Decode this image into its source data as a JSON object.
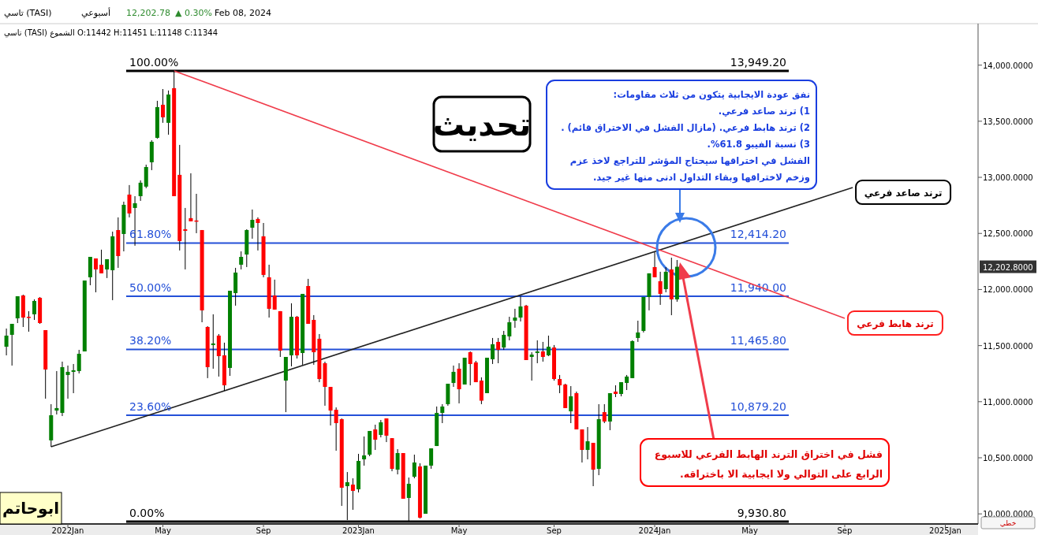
{
  "chart_data": {
    "type": "candlestick",
    "title": "تاسي (TASI)",
    "subtitle": "تاسي (TASI)  الشموع  O:11442 H:11451 L:11148 C:11344",
    "x": [
      "2021-10-17",
      "2021-10-24",
      "2021-10-31",
      "2021-11-07",
      "2021-11-14",
      "2021-11-21",
      "2021-11-28",
      "2021-12-05",
      "2021-12-12",
      "2021-12-19",
      "2021-12-26",
      "2022-01-02",
      "2022-01-09",
      "2022-01-16",
      "2022-01-23",
      "2022-01-30",
      "2022-02-06",
      "2022-02-13",
      "2022-02-20",
      "2022-02-27",
      "2022-03-06",
      "2022-03-13",
      "2022-03-20",
      "2022-03-27",
      "2022-04-03",
      "2022-04-10",
      "2022-04-17",
      "2022-04-24",
      "2022-05-01",
      "2022-05-08",
      "2022-05-15",
      "2022-05-22",
      "2022-05-29",
      "2022-06-05",
      "2022-06-12",
      "2022-06-19",
      "2022-06-26",
      "2022-07-03",
      "2022-07-10",
      "2022-07-17",
      "2022-07-24",
      "2022-07-31",
      "2022-08-07",
      "2022-08-14",
      "2022-08-21",
      "2022-08-28",
      "2022-09-04",
      "2022-09-11",
      "2022-09-18",
      "2022-09-25",
      "2022-10-02",
      "2022-10-09",
      "2022-10-16",
      "2022-10-23",
      "2022-10-30",
      "2022-11-06",
      "2022-11-13",
      "2022-11-20",
      "2022-11-27",
      "2022-12-04",
      "2022-12-11",
      "2022-12-18",
      "2022-12-25",
      "2023-01-01",
      "2023-01-08",
      "2023-01-15",
      "2023-01-22",
      "2023-01-29",
      "2023-02-05",
      "2023-02-12",
      "2023-02-19",
      "2023-02-26",
      "2023-03-05",
      "2023-03-12",
      "2023-03-19",
      "2023-03-26",
      "2023-04-02",
      "2023-04-09",
      "2023-04-16",
      "2023-04-23",
      "2023-04-30",
      "2023-05-07",
      "2023-05-14",
      "2023-05-21",
      "2023-05-28",
      "2023-06-04",
      "2023-06-11",
      "2023-06-18",
      "2023-06-25",
      "2023-07-02",
      "2023-07-09",
      "2023-07-16",
      "2023-07-23",
      "2023-07-30",
      "2023-08-06",
      "2023-08-13",
      "2023-08-20",
      "2023-08-27",
      "2023-09-03",
      "2023-09-10",
      "2023-09-17",
      "2023-09-24",
      "2023-10-01",
      "2023-10-08",
      "2023-10-15",
      "2023-10-22",
      "2023-10-29",
      "2023-11-05",
      "2023-11-12",
      "2023-11-19",
      "2023-11-26",
      "2023-12-03",
      "2023-12-10",
      "2023-12-17",
      "2023-12-24",
      "2023-12-31",
      "2024-01-07",
      "2024-01-14",
      "2024-01-21",
      "2024-01-28",
      "2024-02-04"
    ],
    "ohlc": [
      [
        11490,
        11652,
        11413,
        11589
      ],
      [
        11596,
        11694,
        11322,
        11694
      ],
      [
        11743,
        11940,
        11701,
        11940
      ],
      [
        11947,
        11954,
        11666,
        11750
      ],
      [
        11757,
        11807,
        11624,
        11750
      ],
      [
        11779,
        11912,
        11729,
        11898
      ],
      [
        11926,
        11933,
        11694,
        11701
      ],
      [
        11638,
        11638,
        11027,
        11287
      ],
      [
        10655,
        10978,
        10598,
        10879
      ],
      [
        10921,
        11273,
        10886,
        10943
      ],
      [
        10900,
        11357,
        10872,
        11308
      ],
      [
        11238,
        11322,
        11027,
        11266
      ],
      [
        11266,
        11336,
        11076,
        11280
      ],
      [
        11273,
        11462,
        11252,
        11427
      ],
      [
        11448,
        12080,
        11448,
        12080
      ],
      [
        12109,
        12291,
        12038,
        12291
      ],
      [
        12277,
        12277,
        11975,
        12179
      ],
      [
        12221,
        12355,
        12144,
        12144
      ],
      [
        12179,
        12270,
        12102,
        12270
      ],
      [
        12172,
        12516,
        11905,
        12474
      ],
      [
        12530,
        12643,
        12193,
        12298
      ],
      [
        12495,
        12783,
        12340,
        12755
      ],
      [
        12846,
        12931,
        12643,
        12678
      ],
      [
        12727,
        12832,
        12390,
        12769
      ],
      [
        12832,
        12973,
        12790,
        12952
      ],
      [
        12917,
        13113,
        12903,
        13092
      ],
      [
        13134,
        13331,
        13064,
        13317
      ],
      [
        13352,
        13682,
        13345,
        13626
      ],
      [
        13647,
        13787,
        13486,
        13535
      ],
      [
        13486,
        13774,
        13380,
        13738
      ],
      [
        13795,
        13949.2,
        12832,
        12832
      ],
      [
        13022,
        13289,
        12348,
        12432
      ],
      [
        12537,
        12727,
        12179,
        12523
      ],
      [
        12636,
        13036,
        12608,
        12608
      ],
      [
        12615,
        12853,
        12502,
        12608
      ],
      [
        12530,
        12530,
        11708,
        11814
      ],
      [
        11666,
        11673,
        11210,
        11308
      ],
      [
        11505,
        11779,
        11294,
        11519
      ],
      [
        11589,
        11603,
        11224,
        11406
      ],
      [
        11413,
        11526,
        11097,
        11146
      ],
      [
        11301,
        11989,
        11230,
        11989
      ],
      [
        11968,
        12193,
        11856,
        12151
      ],
      [
        12221,
        12340,
        12179,
        12291
      ],
      [
        12312,
        12537,
        12200,
        12530
      ],
      [
        12551,
        12713,
        12453,
        12621
      ],
      [
        12629,
        12643,
        12348,
        12593
      ],
      [
        12474,
        12593,
        12109,
        12130
      ],
      [
        12109,
        12221,
        11750,
        11828
      ],
      [
        11947,
        12088,
        11821,
        11821
      ],
      [
        11807,
        11807,
        11399,
        11455
      ],
      [
        11188,
        11399,
        10907,
        11399
      ],
      [
        11413,
        11877,
        11315,
        11757
      ],
      [
        11757,
        11764,
        11385,
        11413
      ],
      [
        11434,
        11961,
        11329,
        11961
      ],
      [
        12031,
        12095,
        11694,
        11694
      ],
      [
        11729,
        11772,
        11329,
        11441
      ],
      [
        11561,
        11603,
        11174,
        11202
      ],
      [
        11343,
        11357,
        10964,
        11132
      ],
      [
        11132,
        11132,
        10788,
        10921
      ],
      [
        10928,
        10949,
        10563,
        10809
      ],
      [
        10844,
        10851,
        10071,
        10233
      ],
      [
        10247,
        10373,
        9945,
        10282
      ],
      [
        10261,
        10317,
        10036,
        10205
      ],
      [
        10219,
        10535,
        10191,
        10472
      ],
      [
        10486,
        10690,
        10430,
        10521
      ],
      [
        10528,
        10739,
        10514,
        10739
      ],
      [
        10753,
        10795,
        10570,
        10661
      ],
      [
        10704,
        10837,
        10682,
        10816
      ],
      [
        10851,
        10851,
        10640,
        10697
      ],
      [
        10675,
        10675,
        10380,
        10401
      ],
      [
        10394,
        10577,
        10352,
        10542
      ],
      [
        10542,
        10542,
        10135,
        10135
      ],
      [
        10142,
        10324,
        9930.8,
        10268
      ],
      [
        10331,
        10528,
        10317,
        10458
      ],
      [
        10423,
        10451,
        9959,
        9966
      ],
      [
        10001,
        10430,
        10001,
        10430
      ],
      [
        10430,
        10584,
        10402,
        10584
      ],
      [
        10605,
        10957,
        10605,
        10900
      ],
      [
        10900,
        10978,
        10809,
        10957
      ],
      [
        10978,
        11160,
        10964,
        11160
      ],
      [
        11167,
        11322,
        11132,
        11266
      ],
      [
        11294,
        11343,
        10985,
        11111
      ],
      [
        11153,
        11392,
        11153,
        11392
      ],
      [
        11441,
        11448,
        11146,
        11336
      ],
      [
        11350,
        11364,
        11174,
        11174
      ],
      [
        11188,
        11217,
        10978,
        11009
      ],
      [
        11076,
        11392,
        11076,
        11392
      ],
      [
        11378,
        11568,
        11336,
        11512
      ],
      [
        11533,
        11568,
        11343,
        11462
      ],
      [
        11483,
        11631,
        11462,
        11596
      ],
      [
        11582,
        11757,
        11547,
        11708
      ],
      [
        11722,
        11828,
        11659,
        11750
      ],
      [
        11750,
        11940,
        11715,
        11849
      ],
      [
        11856,
        11863,
        11371,
        11371
      ],
      [
        11399,
        11441,
        11188,
        11420
      ],
      [
        11434,
        11547,
        11343,
        11448
      ],
      [
        11448,
        11533,
        11357,
        11399
      ],
      [
        11413,
        11589,
        11406,
        11490
      ],
      [
        11483,
        11505,
        11188,
        11202
      ],
      [
        11202,
        11238,
        11076,
        11146
      ],
      [
        11153,
        11160,
        10943,
        10943
      ],
      [
        10914,
        11139,
        10809,
        11048
      ],
      [
        11076,
        11090,
        10753,
        10753
      ],
      [
        10753,
        10753,
        10458,
        10570
      ],
      [
        10570,
        10774,
        10486,
        10647
      ],
      [
        10633,
        10633,
        10247,
        10394
      ],
      [
        10401,
        10978,
        10345,
        10844
      ],
      [
        10907,
        10978,
        10809,
        10823
      ],
      [
        10823,
        11076,
        10746,
        11076
      ],
      [
        11090,
        11146,
        11041,
        11069
      ],
      [
        11069,
        11174,
        11048,
        11174
      ],
      [
        11167,
        11238,
        11104,
        11224
      ],
      [
        11210,
        11547,
        11210,
        11540
      ],
      [
        11568,
        11722,
        11533,
        11617
      ],
      [
        11631,
        11933,
        11617,
        11933
      ],
      [
        11933,
        12144,
        11814,
        12144
      ],
      [
        12200,
        12333,
        12109,
        12109
      ],
      [
        12074,
        12158,
        11863,
        11961
      ],
      [
        12003,
        12200,
        11975,
        12158
      ],
      [
        12179,
        12284,
        11771,
        11912
      ],
      [
        11912,
        12263,
        11891,
        12202.78
      ]
    ],
    "series": [
      {
        "type": "line",
        "color": "#222222",
        "x": [
          "2021-12-12",
          "2024-09-11"
        ],
        "values": [
          10598,
          12909
        ]
      },
      {
        "type": "line",
        "color": "#f03c4b",
        "x": [
          "2022-05-15",
          "2024-09-01"
        ],
        "values": [
          13949.2,
          11743
        ]
      }
    ],
    "xlim": [
      "2021-10-09",
      "2025-02-15"
    ],
    "xticks": [
      {
        "value": "2022-01-02",
        "label": "2022Jan"
      },
      {
        "value": "2022-05-01",
        "label": "May"
      },
      {
        "value": "2022-09-04",
        "label": "Sep"
      },
      {
        "value": "2023-01-01",
        "label": "2023Jan"
      },
      {
        "value": "2023-05-07",
        "label": "May"
      },
      {
        "value": "2023-09-03",
        "label": "Sep"
      },
      {
        "value": "2024-01-07",
        "label": "2024Jan"
      },
      {
        "value": "2024-05-05",
        "label": "May"
      },
      {
        "value": "2024-09-01",
        "label": "Sep"
      },
      {
        "value": "2025-01-05",
        "label": "2025Jan"
      }
    ],
    "ylim": [
      9910,
      14370
    ],
    "yticks": [
      {
        "value": 10000,
        "label": "10,000.0000"
      },
      {
        "value": 10500,
        "label": "10,500.0000"
      },
      {
        "value": 11000,
        "label": "11,000.0000"
      },
      {
        "value": 11500,
        "label": "11,500.0000"
      },
      {
        "value": 12000,
        "label": "12,000.0000"
      },
      {
        "value": 12500,
        "label": "12,500.0000"
      },
      {
        "value": 13000,
        "label": "13,000.0000"
      },
      {
        "value": 13500,
        "label": "13,500.0000"
      },
      {
        "value": 14000,
        "label": "14,000.0000"
      }
    ],
    "ref_lines": [
      {
        "axis": "y",
        "value": 13949.2,
        "label": "13,949.20",
        "color": "#000000"
      },
      {
        "axis": "y",
        "value": 12414.2,
        "label": "12,414.20",
        "color": "#2450d8"
      },
      {
        "axis": "y",
        "value": 11940,
        "label": "11,940.00",
        "color": "#2450d8"
      },
      {
        "axis": "y",
        "value": 11465.8,
        "label": "11,465.80",
        "color": "#2450d8"
      },
      {
        "axis": "y",
        "value": 10879.2,
        "label": "10,879.20",
        "color": "#2450d8"
      },
      {
        "axis": "y",
        "value": 9930.8,
        "label": "9,930.80",
        "color": "#000000"
      }
    ],
    "annotations": [
      "أسبوعي",
      "12,202.78",
      "▲ 0.30%",
      "Feb 08, 2024",
      "تحديث",
      "نفق عودة الايجابية يتكون من ثلاث مقاومات:\n1) ترند صاعد فرعي.\n2) ترند هابط فرعي. (مازال الفشل في الاختراق قائم) .\n3) نسبة الفيبو 61.8%.\nالفشل في اختراقها سيحتاج المؤشر للتراجع لاخذ عزم\nوزخم لاختراقها وبقاء التداول ادنى منها غير جيد.",
      "فشل في اختراق الترند الهابط الفرعي للاسبوع\nالرابع على التوالي ولا ايجابية الا باختراقه.",
      "ابوحاتم",
      "خطي",
      "12,202.8000",
      {
        "text": "100.00%",
        "x": "2022-03-20",
        "y": 13949.2
      },
      {
        "text": "61.80%",
        "x": "2022-03-20",
        "y": 12414.2
      },
      {
        "text": "50.00%",
        "x": "2022-03-20",
        "y": 11940
      },
      {
        "text": "38.20%",
        "x": "2022-03-20",
        "y": 11465.8
      },
      {
        "text": "23.60%",
        "x": "2022-03-20",
        "y": 10879.2
      },
      {
        "text": "0.00%",
        "x": "2022-03-20",
        "y": 9930.8
      },
      {
        "text": "ترند صاعد فرعي",
        "x": "2024-09-11",
        "y": 12909
      },
      {
        "text": "ترند هابط فرعي",
        "x": "2024-09-01",
        "y": 11743
      }
    ]
  }
}
